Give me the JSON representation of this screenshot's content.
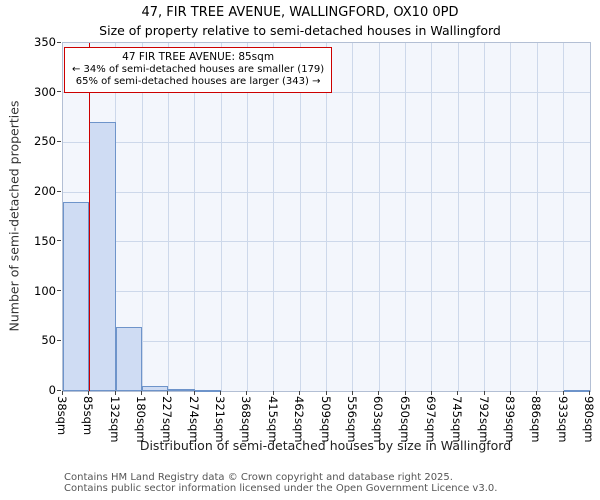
{
  "title": "47, FIR TREE AVENUE, WALLINGFORD, OX10 0PD",
  "subtitle": "Size of property relative to semi-detached houses in Wallingford",
  "annotation": {
    "line1": "47 FIR TREE AVENUE: 85sqm",
    "line2": "← 34% of semi-detached houses are smaller (179)",
    "line3": "65% of semi-detached houses are larger (343) →"
  },
  "footer": {
    "line1": "Contains HM Land Registry data © Crown copyright and database right 2025.",
    "line2": "Contains public sector information licensed under the Open Government Licence v3.0."
  },
  "chart_data": {
    "type": "bar",
    "title": "47, FIR TREE AVENUE, WALLINGFORD, OX10 0PD",
    "subtitle": "Size of property relative to semi-detached houses in Wallingford",
    "xlabel": "Distribution of semi-detached houses by size in Wallingford",
    "ylabel": "Number of semi-detached properties",
    "categories": [
      "38sqm",
      "85sqm",
      "132sqm",
      "180sqm",
      "227sqm",
      "274sqm",
      "321sqm",
      "368sqm",
      "415sqm",
      "462sqm",
      "509sqm",
      "556sqm",
      "603sqm",
      "650sqm",
      "697sqm",
      "745sqm",
      "792sqm",
      "839sqm",
      "886sqm",
      "933sqm",
      "980sqm"
    ],
    "bin_edges": [
      38,
      85,
      132,
      180,
      227,
      274,
      321,
      368,
      415,
      462,
      509,
      556,
      603,
      650,
      697,
      745,
      792,
      839,
      886,
      933,
      980
    ],
    "values": [
      190,
      271,
      64,
      5,
      2,
      1,
      0,
      0,
      0,
      0,
      0,
      0,
      0,
      0,
      0,
      0,
      0,
      0,
      0,
      1
    ],
    "ylim": [
      0,
      350
    ],
    "yticks": [
      0,
      50,
      100,
      150,
      200,
      250,
      300,
      350
    ],
    "marker_value": 85,
    "grid": "on",
    "legend": "none",
    "colors": {
      "bar_fill": "#cfdcf3",
      "bar_border": "#6e94ca",
      "marker": "#cc0000",
      "grid": "#cdd8ea",
      "plot_bg": "#f3f6fc",
      "annotation_border": "#cc0000"
    }
  }
}
